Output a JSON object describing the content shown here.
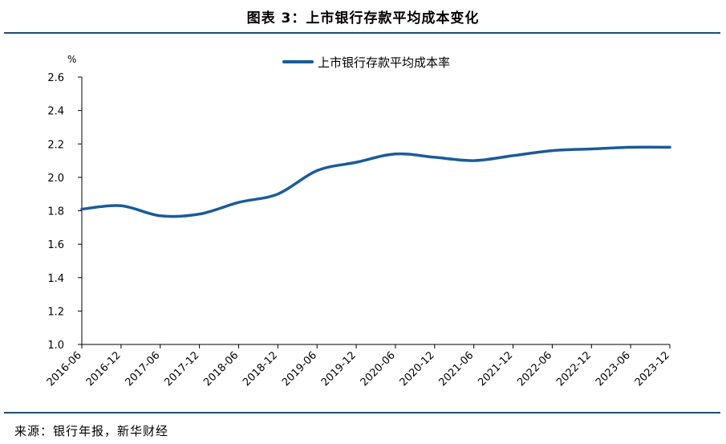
{
  "header": {
    "title": "图表 3：上市银行存款平均成本变化"
  },
  "footer": {
    "source": "来源：银行年报，新华财经"
  },
  "colors": {
    "line": "#1a5b99",
    "rule": "#1f4e79",
    "axis": "#000000"
  },
  "chart_data": {
    "type": "line",
    "ylabel": "%",
    "ylim": [
      1.0,
      2.6
    ],
    "yticks": [
      "1.0",
      "1.2",
      "1.4",
      "1.6",
      "1.8",
      "2.0",
      "2.2",
      "2.4",
      "2.6"
    ],
    "grid": false,
    "legend_position": "top-center",
    "categories": [
      "2016-06",
      "2016-12",
      "2017-06",
      "2017-12",
      "2018-06",
      "2018-12",
      "2019-06",
      "2019-12",
      "2020-06",
      "2020-12",
      "2021-06",
      "2021-12",
      "2022-06",
      "2022-12",
      "2023-06",
      "2023-12"
    ],
    "series": [
      {
        "name": "上市银行存款平均成本率",
        "values": [
          1.81,
          1.83,
          1.77,
          1.78,
          1.85,
          1.9,
          2.04,
          2.09,
          2.14,
          2.12,
          2.1,
          2.13,
          2.16,
          2.17,
          2.18,
          2.18
        ]
      }
    ]
  }
}
